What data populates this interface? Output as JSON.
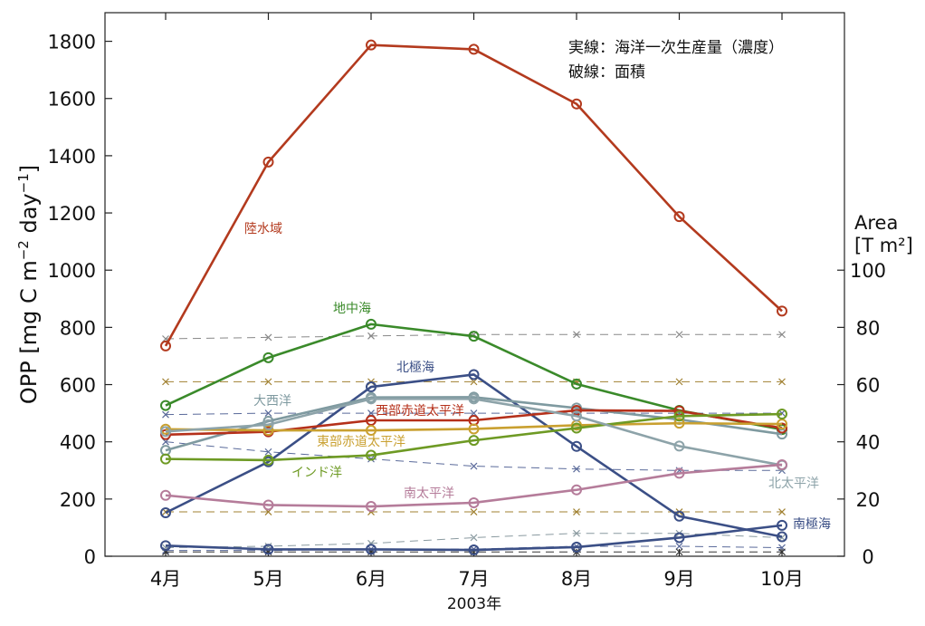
{
  "chart_data": {
    "type": "line",
    "xlabel": "2003年",
    "categories": [
      "4月",
      "5月",
      "6月",
      "7月",
      "8月",
      "9月",
      "10月"
    ],
    "ylabel_left": "OPP [mg C m^-2 day^-1]",
    "ylim_left": [
      0,
      1900
    ],
    "yticks_left": [
      "0",
      "200",
      "400",
      "600",
      "800",
      "1000",
      "1200",
      "1400",
      "1600",
      "1800"
    ],
    "ylabel_right_line1": "Area",
    "ylabel_right_line2": "[T m²]",
    "ylim_right": [
      0,
      190
    ],
    "yticks_right": [
      "0",
      "20",
      "40",
      "60",
      "80",
      "100"
    ],
    "notes": [
      "実線：海洋一次生産量（濃度）",
      "破線：面積"
    ],
    "grid": false,
    "opp_series": [
      {
        "name": "陸水域",
        "color": "#b33a1e",
        "values": [
          735,
          1378,
          1787,
          1772,
          1581,
          1187,
          857
        ]
      },
      {
        "name": "地中海",
        "color": "#3a8a2a",
        "values": [
          527,
          694,
          811,
          769,
          602,
          510,
          443
        ]
      },
      {
        "name": "北極海",
        "color": "#3b4f86",
        "values": [
          152,
          330,
          592,
          635,
          384,
          140,
          68
        ]
      },
      {
        "name": "大西洋",
        "color": "#7f9aa0",
        "values": [
          370,
          472,
          555,
          556,
          518,
          478,
          427
        ]
      },
      {
        "name": "西部赤道太平洋",
        "color": "#b5301a",
        "values": [
          425,
          435,
          475,
          475,
          510,
          508,
          448
        ]
      },
      {
        "name": "東部赤道太平洋",
        "color": "#c9a030",
        "values": [
          444,
          440,
          440,
          445,
          458,
          465,
          462
        ]
      },
      {
        "name": "インド洋",
        "color": "#6e9a24",
        "values": [
          340,
          336,
          353,
          405,
          448,
          490,
          497
        ]
      },
      {
        "name": "北太平洋",
        "color": "#8da3a9",
        "values": [
          436,
          460,
          550,
          550,
          490,
          385,
          318
        ]
      },
      {
        "name": "南太平洋",
        "color": "#b57c9a",
        "values": [
          213,
          179,
          174,
          187,
          232,
          290,
          320
        ]
      },
      {
        "name": "南極海",
        "color": "#3b4f86",
        "values": [
          37,
          24,
          24,
          22,
          32,
          65,
          108
        ]
      }
    ],
    "area_series": [
      {
        "color": "#888888",
        "values": [
          76,
          76.5,
          77,
          77.5,
          77.5,
          77.5,
          77.5
        ]
      },
      {
        "color": "#a08030",
        "values": [
          61,
          61,
          61,
          61,
          61,
          61,
          61
        ]
      },
      {
        "color": "#5a6a9a",
        "values": [
          49.5,
          50,
          50,
          50,
          50,
          50,
          50
        ]
      },
      {
        "color": "#5a6a9a",
        "values": [
          40,
          36.5,
          34,
          31.5,
          30.5,
          30,
          30
        ]
      },
      {
        "color": "#a08030",
        "values": [
          15.5,
          15.5,
          15.5,
          15.5,
          15.5,
          15.5,
          15.5
        ]
      },
      {
        "color": "#8a9aa0",
        "values": [
          3,
          3.5,
          4.5,
          6.5,
          8,
          8,
          6.5
        ]
      },
      {
        "color": "#5a6a9a",
        "values": [
          2,
          2,
          2.5,
          2.5,
          3.5,
          3.5,
          3
        ]
      },
      {
        "color": "#333333",
        "values": [
          1.5,
          1.5,
          1.5,
          1.5,
          1.5,
          1.5,
          1.5
        ]
      }
    ]
  }
}
